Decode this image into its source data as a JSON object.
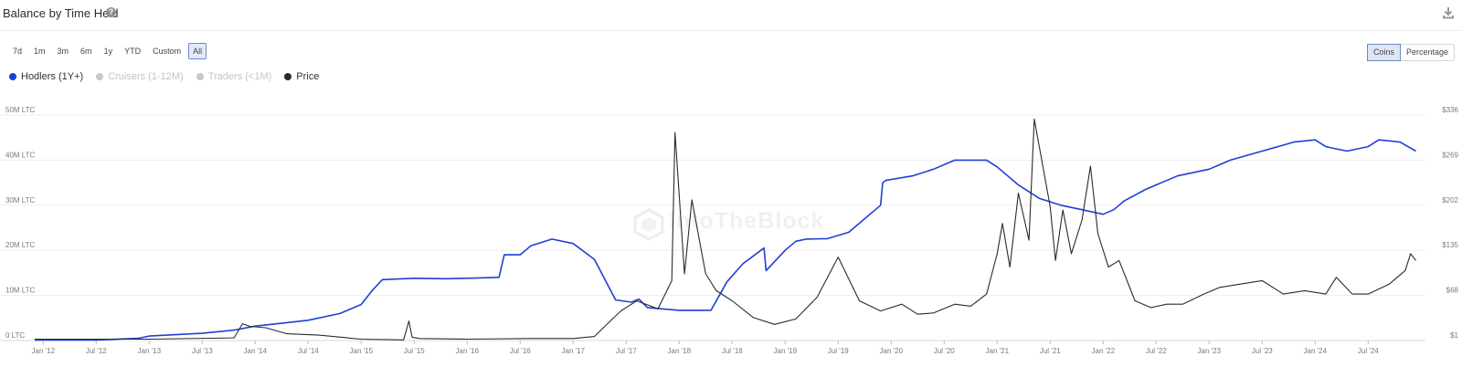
{
  "header": {
    "title": "Balance by Time Held",
    "help_glyph": "?"
  },
  "range_buttons": [
    "7d",
    "1m",
    "3m",
    "6m",
    "1y",
    "YTD",
    "Custom",
    "All"
  ],
  "range_active": "All",
  "mode_buttons": [
    "Coins",
    "Percentage"
  ],
  "mode_active": "Coins",
  "watermark": "IntoTheBlock",
  "colors": {
    "hodlers": "#1f3fd6",
    "price": "#2b2b2b",
    "disabled": "#c8c8c8",
    "grid": "#ededed"
  },
  "chart_data": {
    "type": "line",
    "x_ticks": [
      "Jan '12",
      "Jul '12",
      "Jan '13",
      "Jul '13",
      "Jan '14",
      "Jul '14",
      "Jan '15",
      "Jul '15",
      "Jan '16",
      "Jul '16",
      "Jan '17",
      "Jul '17",
      "Jan '18",
      "Jul '18",
      "Jan '19",
      "Jul '19",
      "Jan '20",
      "Jul '20",
      "Jan '21",
      "Jul '21",
      "Jan '22",
      "Jul '22",
      "Jan '23",
      "Jul '23",
      "Jan '24",
      "Jul '24"
    ],
    "y_left_ticks": [
      "0 LTC",
      "10M LTC",
      "20M LTC",
      "30M LTC",
      "40M LTC",
      "50M LTC"
    ],
    "y_left_range": [
      0,
      50000000
    ],
    "y_right_ticks": [
      "$1",
      "$68",
      "$135",
      "$202",
      "$269",
      "$336"
    ],
    "y_right_range": [
      1,
      336
    ],
    "legend": [
      {
        "name": "Hodlers (1Y+)",
        "enabled": true
      },
      {
        "name": "Cruisers (1-12M)",
        "enabled": false
      },
      {
        "name": "Traders (<1M)",
        "enabled": false
      },
      {
        "name": "Price",
        "enabled": true
      }
    ],
    "series": [
      {
        "name": "Hodlers (1Y+)",
        "axis": "left",
        "x": [
          2011.92,
          2012.5,
          2012.9,
          2013.0,
          2013.5,
          2013.8,
          2014.0,
          2014.2,
          2014.5,
          2014.8,
          2015.0,
          2015.1,
          2015.2,
          2015.5,
          2015.8,
          2016.0,
          2016.3,
          2016.35,
          2016.5,
          2016.6,
          2016.8,
          2017.0,
          2017.2,
          2017.4,
          2017.55,
          2017.62,
          2017.7,
          2018.0,
          2018.3,
          2018.45,
          2018.6,
          2018.8,
          2018.82,
          2019.0,
          2019.1,
          2019.2,
          2019.4,
          2019.6,
          2019.9,
          2019.92,
          2019.95,
          2020.2,
          2020.4,
          2020.6,
          2020.9,
          2021.0,
          2021.2,
          2021.4,
          2021.6,
          2021.8,
          2022.0,
          2022.1,
          2022.2,
          2022.4,
          2022.7,
          2023.0,
          2023.2,
          2023.5,
          2023.8,
          2024.0,
          2024.1,
          2024.3,
          2024.5,
          2024.6,
          2024.8,
          2024.95
        ],
        "values": [
          100000,
          100000,
          500000,
          1000000,
          1600000,
          2300000,
          3200000,
          3700000,
          4500000,
          6000000,
          8000000,
          11000000,
          13500000,
          13800000,
          13700000,
          13800000,
          14000000,
          19000000,
          19000000,
          21000000,
          22500000,
          21500000,
          18000000,
          9000000,
          8500000,
          9200000,
          7300000,
          6700000,
          6700000,
          13000000,
          17000000,
          20500000,
          15500000,
          20000000,
          22000000,
          22500000,
          22600000,
          24000000,
          30000000,
          35000000,
          35500000,
          36500000,
          38000000,
          40000000,
          40000000,
          38500000,
          34500000,
          31500000,
          30000000,
          29000000,
          28000000,
          29000000,
          31000000,
          33500000,
          36500000,
          38000000,
          40000000,
          42000000,
          44000000,
          44500000,
          43000000,
          42000000,
          43000000,
          44500000,
          44000000,
          42000000
        ]
      },
      {
        "name": "Price",
        "axis": "right",
        "x": [
          2011.92,
          2013.0,
          2013.8,
          2013.88,
          2013.95,
          2014.1,
          2014.3,
          2014.6,
          2015.0,
          2015.4,
          2015.45,
          2015.48,
          2015.55,
          2016.0,
          2016.6,
          2017.0,
          2017.2,
          2017.35,
          2017.45,
          2017.55,
          2017.6,
          2017.8,
          2017.93,
          2017.96,
          2018.05,
          2018.12,
          2018.25,
          2018.35,
          2018.5,
          2018.7,
          2018.9,
          2019.1,
          2019.3,
          2019.5,
          2019.7,
          2019.9,
          2020.1,
          2020.25,
          2020.4,
          2020.6,
          2020.75,
          2020.9,
          2021.0,
          2021.05,
          2021.12,
          2021.2,
          2021.3,
          2021.35,
          2021.5,
          2021.55,
          2021.62,
          2021.7,
          2021.8,
          2021.88,
          2021.95,
          2022.05,
          2022.15,
          2022.3,
          2022.45,
          2022.6,
          2022.75,
          2022.95,
          2023.1,
          2023.3,
          2023.5,
          2023.7,
          2023.9,
          2024.1,
          2024.2,
          2024.35,
          2024.5,
          2024.7,
          2024.85,
          2024.9,
          2024.95
        ],
        "values": [
          3,
          3,
          5,
          26,
          22,
          20,
          11,
          9,
          3,
          2,
          30,
          6,
          4,
          3,
          4,
          4,
          7,
          30,
          45,
          55,
          60,
          48,
          90,
          310,
          100,
          210,
          100,
          75,
          60,
          35,
          25,
          33,
          65,
          125,
          60,
          45,
          55,
          40,
          42,
          55,
          52,
          70,
          130,
          175,
          110,
          220,
          150,
          330,
          200,
          120,
          195,
          130,
          180,
          260,
          160,
          110,
          120,
          60,
          50,
          55,
          55,
          70,
          80,
          85,
          90,
          70,
          75,
          70,
          95,
          70,
          70,
          85,
          105,
          130,
          120
        ]
      }
    ]
  }
}
